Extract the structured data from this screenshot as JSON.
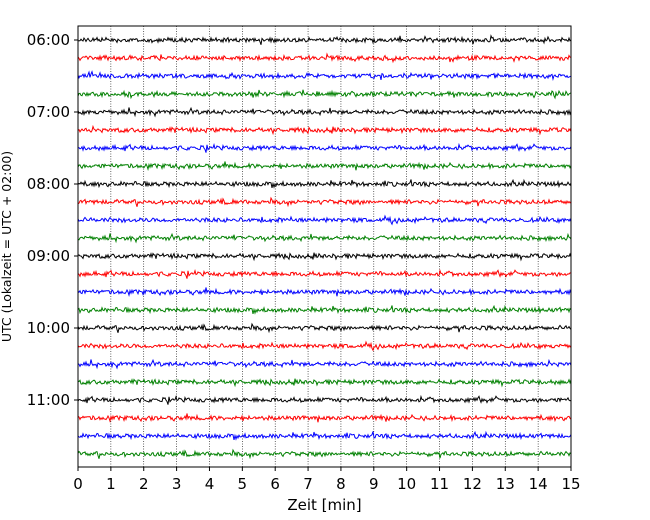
{
  "chart_data": {
    "type": "line",
    "title": "",
    "xlabel": "Zeit  [min]",
    "ylabel": "UTC (Lokalzeit = UTC + 02:00)",
    "xlim": [
      0,
      15
    ],
    "x_ticks": [
      "0",
      "1",
      "2",
      "3",
      "4",
      "5",
      "6",
      "7",
      "8",
      "9",
      "10",
      "11",
      "12",
      "13",
      "14",
      "15"
    ],
    "y_tick_labels": [
      "06:00",
      "07:00",
      "08:00",
      "09:00",
      "10:00",
      "11:00"
    ],
    "rows_per_hour": 4,
    "row_count": 24,
    "grid": "vertical-dotted",
    "legend": "none",
    "series_colors": [
      "#000000",
      "#ff0000",
      "#0000ff",
      "#008000"
    ]
  }
}
